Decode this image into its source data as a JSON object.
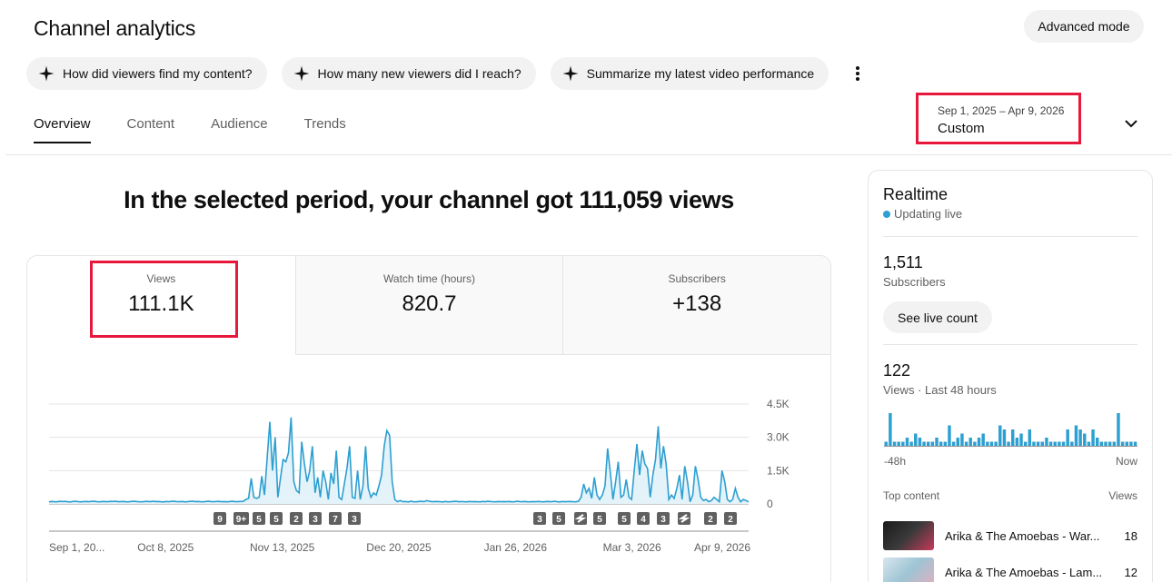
{
  "page": {
    "title": "Channel analytics",
    "advanced_mode": "Advanced mode"
  },
  "suggestions": [
    {
      "label": "How did viewers find my content?",
      "icon": "sparkle-icon"
    },
    {
      "label": "How many new viewers did I reach?",
      "icon": "sparkle-icon"
    },
    {
      "label": "Summarize my latest video performance",
      "icon": "sparkle-icon"
    }
  ],
  "tabs": [
    "Overview",
    "Content",
    "Audience",
    "Trends"
  ],
  "active_tab": "Overview",
  "date_filter": {
    "range": "Sep 1, 2025 – Apr 9, 2026",
    "preset": "Custom"
  },
  "headline": "In the selected period, your channel got 111,059 views",
  "metrics": [
    {
      "label": "Views",
      "value": "111.1K"
    },
    {
      "label": "Watch time (hours)",
      "value": "820.7"
    },
    {
      "label": "Subscribers",
      "value": "+138"
    }
  ],
  "colors": {
    "accent": "#2d9fd1",
    "highlight": "#e8173c",
    "area": "#e4f3f9"
  },
  "chart_data": {
    "type": "area",
    "title": "",
    "xlabel": "",
    "ylabel": "",
    "ylim": [
      0,
      4500
    ],
    "y_ticks": [
      "4.5K",
      "3.0K",
      "1.5K",
      "0"
    ],
    "x_ticks": [
      "Sep 1, 20...",
      "Oct 8, 2025",
      "Nov 13, 2025",
      "Dec 20, 2025",
      "Jan 26, 2026",
      "Mar 3, 2026",
      "Apr 9, 2026"
    ],
    "x_start": "Sep 1, 2025",
    "x_end": "Apr 9, 2026",
    "grid": true,
    "series": [
      {
        "values": [
          90,
          110,
          100,
          95,
          120,
          105,
          115,
          100,
          90,
          110,
          120,
          100,
          95,
          105,
          110,
          100,
          115,
          120,
          100,
          95,
          110,
          105,
          100,
          115,
          110,
          120,
          100,
          105,
          110,
          95,
          100,
          110,
          120,
          105,
          100,
          95,
          110,
          115,
          100,
          120,
          105,
          110,
          100,
          90,
          110,
          100,
          115,
          120,
          105,
          100,
          110,
          95,
          100,
          115,
          120,
          105,
          110,
          100,
          95,
          110,
          120,
          105,
          100,
          110,
          115,
          100,
          105,
          95,
          110,
          120,
          100,
          105,
          110,
          115,
          200,
          250,
          1150,
          300,
          250,
          300,
          1250,
          400,
          2100,
          3700,
          1500,
          3000,
          300,
          1150,
          2000,
          1900,
          2300,
          3900,
          1000,
          600,
          500,
          2800,
          1800,
          1000,
          1500,
          2600,
          500,
          1200,
          300,
          1500,
          1000,
          200,
          1400,
          900,
          2400,
          300,
          200,
          900,
          1600,
          2600,
          300,
          250,
          1500,
          200,
          800,
          2600,
          700,
          300,
          500,
          400,
          800,
          1300,
          2600,
          3300,
          3100,
          1000,
          200,
          100,
          150,
          100,
          110,
          90,
          120,
          100,
          95,
          110,
          120,
          100,
          150,
          120,
          100,
          105,
          110,
          100,
          90,
          110,
          95,
          100,
          110,
          120,
          100,
          105,
          100,
          95,
          110,
          100,
          105,
          100,
          95,
          110,
          100,
          120,
          105,
          100,
          95,
          110,
          100,
          105,
          100,
          110,
          95,
          100,
          120,
          105,
          100,
          110,
          95,
          100,
          105,
          100,
          110,
          100,
          95,
          110,
          105,
          100,
          120,
          100,
          90,
          110,
          100,
          105,
          110,
          100,
          95,
          120,
          300,
          900,
          500,
          700,
          250,
          1200,
          400,
          200,
          400,
          800,
          2500,
          1400,
          200,
          1000,
          1900,
          300,
          400,
          1100,
          300,
          200,
          1500,
          2700,
          1300,
          2400,
          1800,
          1600,
          300,
          1300,
          2000,
          3500,
          1600,
          2600,
          1800,
          200,
          400,
          250,
          700,
          1300,
          200,
          1700,
          1000,
          100,
          400,
          1700,
          1100,
          300,
          150,
          200,
          100,
          150,
          300,
          200,
          100,
          1500,
          1000,
          200,
          100,
          200,
          700,
          300,
          100,
          200,
          150,
          100
        ]
      }
    ],
    "video_markers": [
      "9",
      "9+",
      "5",
      "5",
      "2",
      "3",
      "7",
      "3",
      "3",
      "5",
      "shorts",
      "5",
      "5",
      "4",
      "3",
      "shorts",
      "2",
      "2"
    ]
  },
  "realtime": {
    "title": "Realtime",
    "status": "Updating live",
    "subscribers_value": "1,511",
    "subscribers_label": "Subscribers",
    "live_button": "See live count",
    "views_value": "122",
    "views_label": "Views · Last 48 hours",
    "axis_start": "-48h",
    "axis_end": "Now",
    "hourly_views": [
      1,
      8,
      1,
      1,
      1,
      2,
      1,
      3,
      2,
      1,
      1,
      1,
      2,
      1,
      1,
      5,
      1,
      2,
      3,
      1,
      2,
      1,
      2,
      3,
      1,
      1,
      1,
      5,
      4,
      1,
      4,
      2,
      3,
      1,
      4,
      1,
      1,
      1,
      2,
      1,
      1,
      1,
      1,
      4,
      1,
      5,
      4,
      3,
      1,
      4,
      2,
      1,
      1,
      1,
      1,
      8,
      1,
      1,
      1,
      1
    ]
  },
  "top_content": {
    "header_left": "Top content",
    "header_right": "Views",
    "items": [
      {
        "title": "Arika & The Amoebas - War...",
        "views": "18",
        "thumb_color": "#2a2a2a"
      },
      {
        "title": "Arika & The Amoebas - Lam...",
        "views": "12",
        "thumb_color": "#8fb8c8"
      }
    ]
  }
}
